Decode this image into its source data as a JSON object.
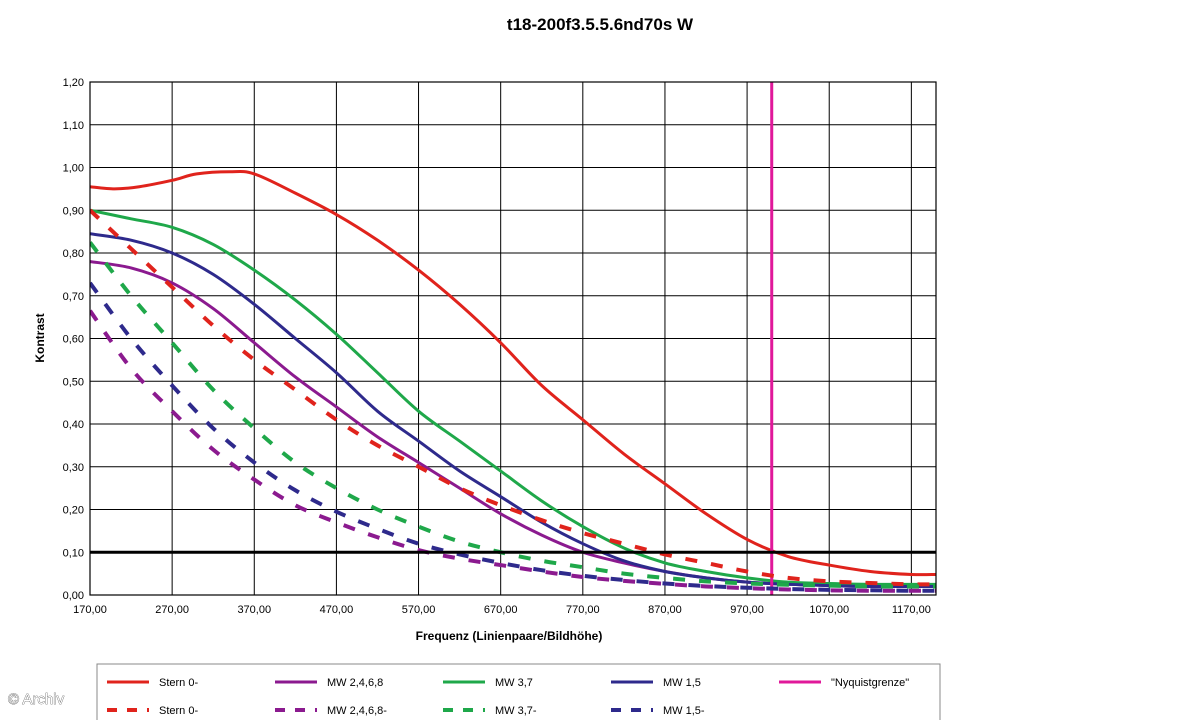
{
  "chart_data": {
    "type": "line",
    "title": "t18-200f3.5.5.6nd70s W",
    "xlabel": "Frequenz (Linienpaare/Bildhöhe)",
    "ylabel": "Kontrast",
    "xlim": [
      170,
      1200
    ],
    "ylim": [
      0,
      1.2
    ],
    "xticks": [
      "170,00",
      "270,00",
      "370,00",
      "470,00",
      "570,00",
      "670,00",
      "770,00",
      "870,00",
      "970,00",
      "1070,00",
      "1170,00"
    ],
    "yticks": [
      "0,00",
      "0,10",
      "0,20",
      "0,30",
      "0,40",
      "0,50",
      "0,60",
      "0,70",
      "0,80",
      "0,90",
      "1,00",
      "1,10",
      "1,20"
    ],
    "grid": true,
    "legend_position": "bottom",
    "reference_line": {
      "y": 0.1,
      "color": "#000000"
    },
    "series": [
      {
        "name": "Stern 0-",
        "color": "#e0231c",
        "dash": false,
        "x": [
          170,
          200,
          230,
          270,
          300,
          340,
          370,
          420,
          470,
          520,
          570,
          620,
          670,
          720,
          770,
          820,
          870,
          920,
          970,
          1020,
          1070,
          1120,
          1170,
          1200
        ],
        "y": [
          0.955,
          0.95,
          0.955,
          0.97,
          0.985,
          0.99,
          0.985,
          0.94,
          0.89,
          0.83,
          0.76,
          0.68,
          0.59,
          0.49,
          0.41,
          0.33,
          0.26,
          0.19,
          0.13,
          0.09,
          0.07,
          0.055,
          0.048,
          0.048
        ]
      },
      {
        "name": "MW 2,4,6,8",
        "color": "#8b1a8f",
        "dash": false,
        "x": [
          170,
          220,
          270,
          320,
          370,
          420,
          470,
          520,
          570,
          620,
          670,
          720,
          770,
          820,
          870,
          920,
          970,
          1020,
          1070,
          1120,
          1170,
          1200
        ],
        "y": [
          0.78,
          0.765,
          0.73,
          0.67,
          0.59,
          0.51,
          0.44,
          0.37,
          0.31,
          0.25,
          0.19,
          0.14,
          0.1,
          0.075,
          0.055,
          0.04,
          0.03,
          0.025,
          0.022,
          0.02,
          0.02,
          0.02
        ]
      },
      {
        "name": "MW 3,7",
        "color": "#1fa84a",
        "dash": false,
        "x": [
          170,
          220,
          270,
          320,
          370,
          420,
          470,
          520,
          570,
          620,
          670,
          720,
          770,
          820,
          870,
          920,
          970,
          1020,
          1070,
          1120,
          1170,
          1200
        ],
        "y": [
          0.9,
          0.88,
          0.86,
          0.82,
          0.76,
          0.69,
          0.61,
          0.52,
          0.43,
          0.36,
          0.29,
          0.22,
          0.16,
          0.11,
          0.075,
          0.055,
          0.04,
          0.03,
          0.027,
          0.025,
          0.025,
          0.025
        ]
      },
      {
        "name": "MW 1,5",
        "color": "#2e2a8c",
        "dash": false,
        "x": [
          170,
          220,
          270,
          320,
          370,
          420,
          470,
          520,
          570,
          620,
          670,
          720,
          770,
          820,
          870,
          920,
          970,
          1020,
          1070,
          1120,
          1170,
          1200
        ],
        "y": [
          0.845,
          0.83,
          0.8,
          0.75,
          0.68,
          0.6,
          0.52,
          0.43,
          0.36,
          0.29,
          0.23,
          0.17,
          0.12,
          0.08,
          0.055,
          0.04,
          0.03,
          0.025,
          0.022,
          0.02,
          0.02,
          0.02
        ]
      },
      {
        "name": "\"Nyquistgrenze\"",
        "color": "#e0189a",
        "dash": false,
        "x": [
          1000,
          1000
        ],
        "y": [
          0,
          1.2
        ]
      },
      {
        "name": "Stern 0-",
        "color": "#e0231c",
        "dash": true,
        "x": [
          170,
          220,
          270,
          320,
          370,
          420,
          470,
          520,
          570,
          620,
          670,
          720,
          770,
          820,
          870,
          920,
          970,
          1020,
          1070,
          1120,
          1170,
          1200
        ],
        "y": [
          0.9,
          0.81,
          0.72,
          0.63,
          0.55,
          0.48,
          0.41,
          0.35,
          0.3,
          0.25,
          0.21,
          0.175,
          0.145,
          0.12,
          0.095,
          0.075,
          0.055,
          0.04,
          0.032,
          0.028,
          0.025,
          0.025
        ]
      },
      {
        "name": "MW 2,4,6,8-",
        "color": "#8b1a8f",
        "dash": true,
        "x": [
          170,
          220,
          270,
          320,
          370,
          420,
          470,
          520,
          570,
          620,
          670,
          720,
          770,
          820,
          870,
          920,
          970,
          1020,
          1070,
          1120,
          1170,
          1200
        ],
        "y": [
          0.665,
          0.53,
          0.43,
          0.34,
          0.27,
          0.21,
          0.17,
          0.135,
          0.105,
          0.085,
          0.07,
          0.055,
          0.042,
          0.033,
          0.026,
          0.02,
          0.016,
          0.013,
          0.011,
          0.01,
          0.01,
          0.01
        ]
      },
      {
        "name": "MW 3,7-",
        "color": "#1fa84a",
        "dash": true,
        "x": [
          170,
          220,
          270,
          320,
          370,
          420,
          470,
          520,
          570,
          620,
          670,
          720,
          770,
          820,
          870,
          920,
          970,
          1020,
          1070,
          1120,
          1170,
          1200
        ],
        "y": [
          0.825,
          0.7,
          0.59,
          0.48,
          0.39,
          0.31,
          0.25,
          0.2,
          0.16,
          0.125,
          0.1,
          0.08,
          0.065,
          0.05,
          0.04,
          0.032,
          0.027,
          0.024,
          0.022,
          0.02,
          0.02,
          0.02
        ]
      },
      {
        "name": "MW 1,5-",
        "color": "#2e2a8c",
        "dash": true,
        "x": [
          170,
          220,
          270,
          320,
          370,
          420,
          470,
          520,
          570,
          620,
          670,
          720,
          770,
          820,
          870,
          920,
          970,
          1020,
          1070,
          1120,
          1170,
          1200
        ],
        "y": [
          0.73,
          0.6,
          0.49,
          0.39,
          0.31,
          0.245,
          0.195,
          0.155,
          0.12,
          0.095,
          0.075,
          0.058,
          0.045,
          0.035,
          0.027,
          0.021,
          0.017,
          0.014,
          0.012,
          0.011,
          0.01,
          0.01
        ]
      }
    ],
    "watermark": "© Archiv"
  }
}
